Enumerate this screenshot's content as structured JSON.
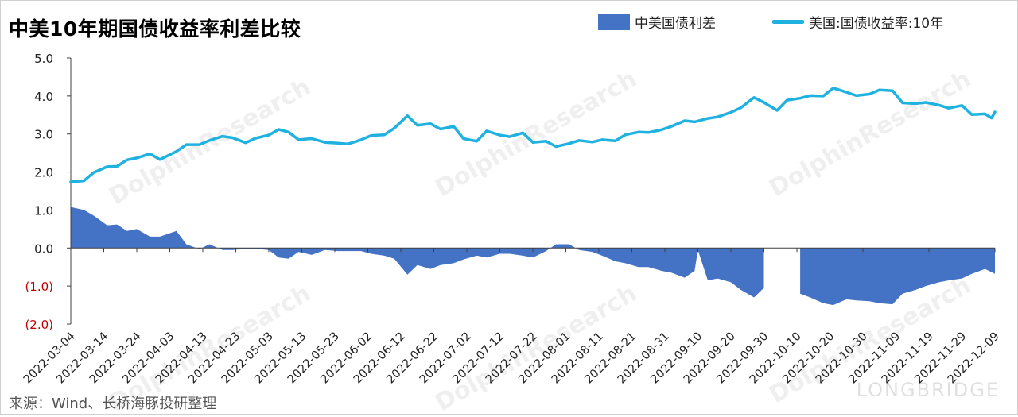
{
  "title": "中美10年期国债收益率利差比较",
  "source": "来源：Wind、长桥海豚投研整理",
  "watermark": {
    "main": "DolphinResearch",
    "small": "LONGBRIDGE"
  },
  "colors": {
    "spread": "#4472c4",
    "us10y": "#1fb1e0",
    "negative_label": "#c00000",
    "axis": "#404040"
  },
  "chart_data": {
    "type": "area",
    "title": "中美10年期国债收益率利差比较",
    "legend_position": "top-right",
    "grid": false,
    "ylim": [
      -2.0,
      5.0
    ],
    "yticks": [
      5.0,
      4.0,
      3.0,
      2.0,
      1.0,
      0.0,
      -1.0,
      -2.0
    ],
    "ytick_labels": [
      "5.0",
      "4.0",
      "3.0",
      "2.0",
      "1.0",
      "0.0",
      "(1.0)",
      "(2.0)"
    ],
    "xlim": [
      "2022-03-04",
      "2022-12-09"
    ],
    "x_tick_labels": [
      "2022-03-04",
      "2022-03-14",
      "2022-03-24",
      "2022-04-03",
      "2022-04-13",
      "2022-04-23",
      "2022-05-03",
      "2022-05-13",
      "2022-05-23",
      "2022-06-02",
      "2022-06-12",
      "2022-06-22",
      "2022-07-02",
      "2022-07-12",
      "2022-07-22",
      "2022-08-01",
      "2022-08-11",
      "2022-08-21",
      "2022-08-31",
      "2022-09-10",
      "2022-09-20",
      "2022-09-30",
      "2022-10-10",
      "2022-10-20",
      "2022-10-30",
      "2022-11-09",
      "2022-11-19",
      "2022-11-29",
      "2022-12-09"
    ],
    "series": [
      {
        "name": "中美国债利差",
        "type": "area",
        "points": [
          [
            "2022-03-04",
            1.08
          ],
          [
            "2022-03-08",
            1.0
          ],
          [
            "2022-03-11",
            0.85
          ],
          [
            "2022-03-15",
            0.6
          ],
          [
            "2022-03-18",
            0.62
          ],
          [
            "2022-03-21",
            0.45
          ],
          [
            "2022-03-24",
            0.5
          ],
          [
            "2022-03-28",
            0.3
          ],
          [
            "2022-03-31",
            0.3
          ],
          [
            "2022-04-05",
            0.45
          ],
          [
            "2022-04-08",
            0.1
          ],
          [
            "2022-04-12",
            -0.03
          ],
          [
            "2022-04-15",
            0.1
          ],
          [
            "2022-04-19",
            -0.05
          ],
          [
            "2022-04-22",
            -0.05
          ],
          [
            "2022-04-26",
            -0.02
          ],
          [
            "2022-04-29",
            -0.02
          ],
          [
            "2022-05-03",
            -0.05
          ],
          [
            "2022-05-06",
            -0.25
          ],
          [
            "2022-05-09",
            -0.28
          ],
          [
            "2022-05-12",
            -0.1
          ],
          [
            "2022-05-16",
            -0.18
          ],
          [
            "2022-05-20",
            -0.05
          ],
          [
            "2022-05-24",
            -0.08
          ],
          [
            "2022-05-27",
            -0.08
          ],
          [
            "2022-05-31",
            -0.08
          ],
          [
            "2022-06-03",
            -0.15
          ],
          [
            "2022-06-07",
            -0.2
          ],
          [
            "2022-06-10",
            -0.28
          ],
          [
            "2022-06-14",
            -0.7
          ],
          [
            "2022-06-17",
            -0.45
          ],
          [
            "2022-06-21",
            -0.55
          ],
          [
            "2022-06-24",
            -0.45
          ],
          [
            "2022-06-28",
            -0.4
          ],
          [
            "2022-07-01",
            -0.3
          ],
          [
            "2022-07-05",
            -0.2
          ],
          [
            "2022-07-08",
            -0.25
          ],
          [
            "2022-07-12",
            -0.15
          ],
          [
            "2022-07-15",
            -0.15
          ],
          [
            "2022-07-19",
            -0.2
          ],
          [
            "2022-07-22",
            -0.25
          ],
          [
            "2022-07-26",
            -0.08
          ],
          [
            "2022-07-29",
            0.1
          ],
          [
            "2022-08-02",
            0.1
          ],
          [
            "2022-08-05",
            -0.05
          ],
          [
            "2022-08-09",
            -0.1
          ],
          [
            "2022-08-12",
            -0.2
          ],
          [
            "2022-08-16",
            -0.35
          ],
          [
            "2022-08-19",
            -0.4
          ],
          [
            "2022-08-23",
            -0.5
          ],
          [
            "2022-08-26",
            -0.5
          ],
          [
            "2022-08-30",
            -0.6
          ],
          [
            "2022-09-02",
            -0.65
          ],
          [
            "2022-09-06",
            -0.78
          ],
          [
            "2022-09-09",
            -0.6
          ],
          [
            "2022-09-10",
            -0.05
          ],
          [
            "2022-09-13",
            -0.85
          ],
          [
            "2022-09-16",
            -0.8
          ],
          [
            "2022-09-20",
            -0.9
          ],
          [
            "2022-09-23",
            -1.1
          ],
          [
            "2022-09-27",
            -1.3
          ],
          [
            "2022-09-30",
            -1.05
          ],
          [
            "2022-10-11",
            -1.2
          ],
          [
            "2022-10-14",
            -1.3
          ],
          [
            "2022-10-18",
            -1.45
          ],
          [
            "2022-10-21",
            -1.5
          ],
          [
            "2022-10-25",
            -1.35
          ],
          [
            "2022-10-28",
            -1.38
          ],
          [
            "2022-11-01",
            -1.4
          ],
          [
            "2022-11-04",
            -1.45
          ],
          [
            "2022-11-08",
            -1.48
          ],
          [
            "2022-11-11",
            -1.2
          ],
          [
            "2022-11-15",
            -1.1
          ],
          [
            "2022-11-18",
            -1.0
          ],
          [
            "2022-11-22",
            -0.9
          ],
          [
            "2022-11-25",
            -0.85
          ],
          [
            "2022-11-29",
            -0.8
          ],
          [
            "2022-12-02",
            -0.68
          ],
          [
            "2022-12-06",
            -0.55
          ],
          [
            "2022-12-09",
            -0.68
          ]
        ]
      },
      {
        "name": "美国:国债收益率:10年",
        "type": "line",
        "points": [
          [
            "2022-03-04",
            1.74
          ],
          [
            "2022-03-08",
            1.77
          ],
          [
            "2022-03-11",
            1.99
          ],
          [
            "2022-03-15",
            2.14
          ],
          [
            "2022-03-18",
            2.15
          ],
          [
            "2022-03-21",
            2.32
          ],
          [
            "2022-03-24",
            2.37
          ],
          [
            "2022-03-28",
            2.48
          ],
          [
            "2022-03-31",
            2.33
          ],
          [
            "2022-04-05",
            2.54
          ],
          [
            "2022-04-08",
            2.72
          ],
          [
            "2022-04-12",
            2.72
          ],
          [
            "2022-04-15",
            2.83
          ],
          [
            "2022-04-19",
            2.94
          ],
          [
            "2022-04-22",
            2.9
          ],
          [
            "2022-04-26",
            2.77
          ],
          [
            "2022-04-29",
            2.89
          ],
          [
            "2022-05-03",
            2.97
          ],
          [
            "2022-05-06",
            3.12
          ],
          [
            "2022-05-09",
            3.05
          ],
          [
            "2022-05-12",
            2.85
          ],
          [
            "2022-05-16",
            2.88
          ],
          [
            "2022-05-20",
            2.78
          ],
          [
            "2022-05-24",
            2.76
          ],
          [
            "2022-05-27",
            2.74
          ],
          [
            "2022-05-31",
            2.85
          ],
          [
            "2022-06-03",
            2.96
          ],
          [
            "2022-06-07",
            2.98
          ],
          [
            "2022-06-10",
            3.15
          ],
          [
            "2022-06-14",
            3.48
          ],
          [
            "2022-06-17",
            3.23
          ],
          [
            "2022-06-21",
            3.27
          ],
          [
            "2022-06-24",
            3.13
          ],
          [
            "2022-06-28",
            3.2
          ],
          [
            "2022-07-01",
            2.88
          ],
          [
            "2022-07-05",
            2.81
          ],
          [
            "2022-07-08",
            3.08
          ],
          [
            "2022-07-12",
            2.97
          ],
          [
            "2022-07-15",
            2.93
          ],
          [
            "2022-07-19",
            3.03
          ],
          [
            "2022-07-22",
            2.78
          ],
          [
            "2022-07-26",
            2.81
          ],
          [
            "2022-07-29",
            2.67
          ],
          [
            "2022-08-02",
            2.75
          ],
          [
            "2022-08-05",
            2.83
          ],
          [
            "2022-08-09",
            2.79
          ],
          [
            "2022-08-12",
            2.85
          ],
          [
            "2022-08-16",
            2.82
          ],
          [
            "2022-08-19",
            2.98
          ],
          [
            "2022-08-23",
            3.05
          ],
          [
            "2022-08-26",
            3.04
          ],
          [
            "2022-08-30",
            3.11
          ],
          [
            "2022-09-02",
            3.2
          ],
          [
            "2022-09-06",
            3.35
          ],
          [
            "2022-09-09",
            3.32
          ],
          [
            "2022-09-13",
            3.41
          ],
          [
            "2022-09-16",
            3.45
          ],
          [
            "2022-09-20",
            3.57
          ],
          [
            "2022-09-23",
            3.69
          ],
          [
            "2022-09-27",
            3.96
          ],
          [
            "2022-09-30",
            3.83
          ],
          [
            "2022-10-04",
            3.62
          ],
          [
            "2022-10-07",
            3.89
          ],
          [
            "2022-10-11",
            3.94
          ],
          [
            "2022-10-14",
            4.01
          ],
          [
            "2022-10-18",
            4.0
          ],
          [
            "2022-10-21",
            4.21
          ],
          [
            "2022-10-25",
            4.1
          ],
          [
            "2022-10-28",
            4.01
          ],
          [
            "2022-11-01",
            4.05
          ],
          [
            "2022-11-04",
            4.16
          ],
          [
            "2022-11-08",
            4.14
          ],
          [
            "2022-11-11",
            3.82
          ],
          [
            "2022-11-15",
            3.8
          ],
          [
            "2022-11-18",
            3.83
          ],
          [
            "2022-11-22",
            3.76
          ],
          [
            "2022-11-25",
            3.68
          ],
          [
            "2022-11-29",
            3.75
          ],
          [
            "2022-12-02",
            3.51
          ],
          [
            "2022-12-06",
            3.53
          ],
          [
            "2022-12-08",
            3.42
          ],
          [
            "2022-12-09",
            3.58
          ]
        ]
      }
    ]
  }
}
